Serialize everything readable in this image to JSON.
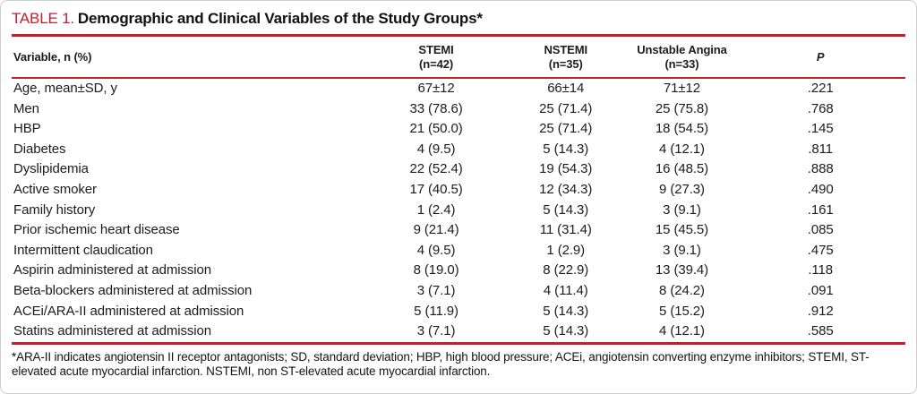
{
  "colors": {
    "accent_red": "#C2202C",
    "text_ink": "#1c1c1c"
  },
  "title": {
    "label": "TABLE 1.",
    "text": "Demographic and Clinical Variables of the Study Groups*"
  },
  "table": {
    "columns": [
      {
        "label": "Variable, n (%)",
        "sub": ""
      },
      {
        "label": "STEMI",
        "sub": "(n=42)"
      },
      {
        "label": "NSTEMI",
        "sub": "(n=35)"
      },
      {
        "label": "Unstable Angina",
        "sub": "(n=33)"
      },
      {
        "label": "P",
        "sub": ""
      }
    ],
    "rows": [
      [
        "Age, mean±SD, y",
        "67±12",
        "66±14",
        "71±12",
        ".221"
      ],
      [
        "Men",
        "33 (78.6)",
        "25 (71.4)",
        "25 (75.8)",
        ".768"
      ],
      [
        "HBP",
        "21 (50.0)",
        "25 (71.4)",
        "18 (54.5)",
        ".145"
      ],
      [
        "Diabetes",
        "4 (9.5)",
        "5 (14.3)",
        "4 (12.1)",
        ".811"
      ],
      [
        "Dyslipidemia",
        "22 (52.4)",
        "19 (54.3)",
        "16 (48.5)",
        ".888"
      ],
      [
        "Active smoker",
        "17 (40.5)",
        "12 (34.3)",
        "9 (27.3)",
        ".490"
      ],
      [
        "Family history",
        "1 (2.4)",
        "5 (14.3)",
        "3 (9.1)",
        ".161"
      ],
      [
        "Prior ischemic heart disease",
        "9 (21.4)",
        "11 (31.4)",
        "15 (45.5)",
        ".085"
      ],
      [
        "Intermittent claudication",
        "4 (9.5)",
        "1 (2.9)",
        "3 (9.1)",
        ".475"
      ],
      [
        "Aspirin administered at admission",
        "8 (19.0)",
        "8 (22.9)",
        "13 (39.4)",
        ".118"
      ],
      [
        "Beta-blockers administered at admission",
        "3 (7.1)",
        "4 (11.4)",
        "8 (24.2)",
        ".091"
      ],
      [
        "ACEi/ARA-II administered at admission",
        "5 (11.9)",
        "5 (14.3)",
        "5 (15.2)",
        ".912"
      ],
      [
        "Statins administered at admission",
        "3 (7.1)",
        "5 (14.3)",
        "4 (12.1)",
        ".585"
      ]
    ]
  },
  "footnote": "*ARA-II indicates angiotensin II receptor antagonists; SD, standard deviation; HBP, high blood pressure; ACEi, angiotensin converting enzyme inhibitors; STEMI, ST-elevated acute myocardial infarction. NSTEMI, non ST-elevated acute myocardial infarction."
}
